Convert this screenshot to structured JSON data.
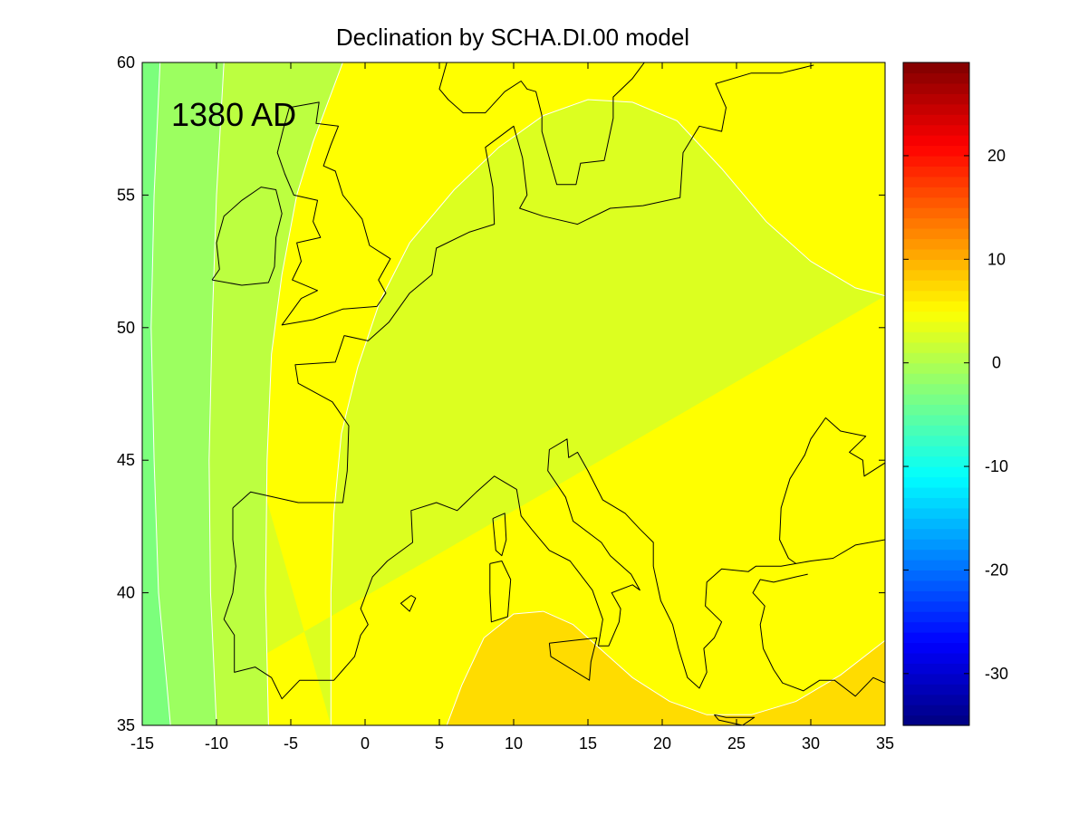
{
  "chart_data": {
    "type": "contour_map",
    "title": "Declination by SCHA.DI.00 model",
    "annotation": "1380 AD",
    "xlabel": "",
    "ylabel": "",
    "xlim": [
      -15,
      35
    ],
    "ylim": [
      35,
      60
    ],
    "x_ticks": [
      -15,
      -10,
      -5,
      0,
      5,
      10,
      15,
      20,
      25,
      30,
      35
    ],
    "y_ticks": [
      35,
      40,
      45,
      50,
      55,
      60
    ],
    "colorbar": {
      "range": [
        -35,
        29
      ],
      "ticks": [
        20,
        10,
        0,
        -10,
        -20,
        -30
      ],
      "colormap": "jet"
    },
    "contour_levels": [
      -6,
      -4,
      -2,
      0,
      2,
      4
    ],
    "contour_fill_colors": {
      "below_-6": "#7cff7c",
      "-6_to_-4": "#9cff60",
      "-4_to_-2": "#bcff40",
      "-2_to_0": "#dcff20",
      "0_to_2": "#ffff00",
      "above_2": "#ffdc00"
    },
    "isolines": [
      {
        "level": -6,
        "points": [
          [
            -13.8,
            60
          ],
          [
            -14.2,
            55
          ],
          [
            -14.4,
            50
          ],
          [
            -14.2,
            45
          ],
          [
            -13.9,
            40
          ],
          [
            -13.1,
            35
          ]
        ]
      },
      {
        "level": -4,
        "points": [
          [
            -9.5,
            60
          ],
          [
            -10.0,
            55
          ],
          [
            -10.3,
            50
          ],
          [
            -10.5,
            45
          ],
          [
            -10.4,
            40
          ],
          [
            -10.0,
            35
          ]
        ]
      },
      {
        "level": -2,
        "points": [
          [
            -1.5,
            60
          ],
          [
            -3.5,
            57
          ],
          [
            -4.6,
            55
          ],
          [
            -5.6,
            52
          ],
          [
            -6.3,
            49
          ],
          [
            -6.6,
            45
          ],
          [
            -6.7,
            40
          ],
          [
            -6.5,
            35
          ]
        ]
      },
      {
        "level": 0,
        "points": [
          [
            35,
            51.2
          ],
          [
            33,
            51.5
          ],
          [
            30,
            52.5
          ],
          [
            27,
            54.0
          ],
          [
            24,
            56.0
          ],
          [
            21,
            57.8
          ],
          [
            18,
            58.5
          ],
          [
            15,
            58.6
          ],
          [
            12,
            58.0
          ],
          [
            9,
            56.8
          ],
          [
            6,
            55.2
          ],
          [
            3,
            53.2
          ],
          [
            1,
            51.0
          ],
          [
            -0.5,
            48.5
          ],
          [
            -1.6,
            46.0
          ],
          [
            -2.1,
            43.0
          ],
          [
            -2.3,
            40.0
          ],
          [
            -2.3,
            35
          ]
        ]
      },
      {
        "level": 2,
        "points": [
          [
            5.5,
            35
          ],
          [
            6.5,
            36.5
          ],
          [
            8.0,
            38.3
          ],
          [
            10.0,
            39.2
          ],
          [
            12.0,
            39.3
          ],
          [
            14.0,
            38.8
          ],
          [
            16.0,
            37.8
          ],
          [
            18.0,
            36.8
          ],
          [
            20.5,
            35.9
          ],
          [
            23.0,
            35.4
          ],
          [
            26.0,
            35.4
          ],
          [
            29.0,
            35.9
          ],
          [
            32.0,
            36.9
          ],
          [
            35,
            38.2
          ]
        ]
      }
    ],
    "coastlines": [
      [
        [
          -10.3,
          51.8
        ],
        [
          -9.8,
          52.2
        ],
        [
          -10.0,
          53.2
        ],
        [
          -9.5,
          54.2
        ],
        [
          -8.3,
          54.8
        ],
        [
          -7.0,
          55.3
        ],
        [
          -6.0,
          55.2
        ],
        [
          -5.6,
          54.3
        ],
        [
          -6.0,
          53.4
        ],
        [
          -6.1,
          52.3
        ],
        [
          -6.5,
          51.7
        ],
        [
          -8.3,
          51.6
        ],
        [
          -10.3,
          51.8
        ]
      ],
      [
        [
          -5.1,
          58.3
        ],
        [
          -5.5,
          57.5
        ],
        [
          -5.9,
          56.6
        ],
        [
          -5.4,
          55.8
        ],
        [
          -4.8,
          55.0
        ],
        [
          -3.2,
          54.8
        ],
        [
          -3.5,
          54.0
        ],
        [
          -3.0,
          53.4
        ],
        [
          -4.6,
          53.2
        ],
        [
          -4.3,
          52.5
        ],
        [
          -4.9,
          51.8
        ],
        [
          -3.2,
          51.4
        ],
        [
          -4.3,
          51.1
        ],
        [
          -5.6,
          50.1
        ],
        [
          -3.5,
          50.3
        ],
        [
          -1.5,
          50.7
        ],
        [
          0.8,
          50.8
        ],
        [
          1.4,
          51.3
        ],
        [
          0.9,
          51.8
        ],
        [
          1.7,
          52.6
        ],
        [
          0.3,
          53.1
        ],
        [
          -0.2,
          54.1
        ],
        [
          -1.5,
          55.0
        ],
        [
          -2.0,
          55.9
        ],
        [
          -2.8,
          56.1
        ],
        [
          -2.3,
          56.9
        ],
        [
          -1.8,
          57.6
        ],
        [
          -3.3,
          57.7
        ],
        [
          -3.1,
          58.5
        ],
        [
          -5.1,
          58.3
        ]
      ],
      [
        [
          -8.9,
          43.2
        ],
        [
          -7.7,
          43.8
        ],
        [
          -4.5,
          43.4
        ],
        [
          -1.5,
          43.4
        ],
        [
          -1.2,
          44.6
        ],
        [
          -1.1,
          46.3
        ],
        [
          -2.2,
          47.2
        ],
        [
          -4.5,
          47.9
        ],
        [
          -4.7,
          48.6
        ],
        [
          -2.0,
          48.7
        ],
        [
          -1.4,
          49.7
        ],
        [
          0.2,
          49.5
        ],
        [
          1.6,
          50.2
        ],
        [
          3.0,
          51.3
        ],
        [
          4.5,
          52.0
        ],
        [
          4.8,
          53.0
        ],
        [
          7.0,
          53.6
        ],
        [
          8.7,
          53.9
        ],
        [
          8.6,
          55.3
        ],
        [
          8.1,
          56.8
        ],
        [
          10.0,
          57.6
        ],
        [
          10.6,
          56.4
        ],
        [
          10.9,
          55.0
        ],
        [
          10.4,
          54.5
        ],
        [
          12.0,
          54.2
        ],
        [
          14.3,
          53.9
        ],
        [
          16.5,
          54.5
        ],
        [
          18.7,
          54.6
        ],
        [
          21.2,
          54.9
        ],
        [
          21.4,
          56.6
        ],
        [
          22.5,
          57.6
        ],
        [
          24.0,
          57.4
        ],
        [
          24.3,
          58.3
        ],
        [
          23.6,
          59.2
        ],
        [
          26.0,
          59.6
        ],
        [
          28.0,
          59.6
        ],
        [
          30.2,
          59.9
        ]
      ],
      [
        [
          12.6,
          56.0
        ],
        [
          12.9,
          55.4
        ],
        [
          14.2,
          55.4
        ],
        [
          14.5,
          56.2
        ],
        [
          16.1,
          56.3
        ],
        [
          16.7,
          57.9
        ],
        [
          16.7,
          58.7
        ],
        [
          18.0,
          59.4
        ],
        [
          18.8,
          60.0
        ]
      ],
      [
        [
          5.5,
          60.0
        ],
        [
          5.0,
          59.0
        ],
        [
          5.6,
          58.6
        ],
        [
          6.6,
          58.1
        ],
        [
          8.1,
          58.1
        ],
        [
          9.4,
          58.9
        ],
        [
          10.5,
          59.3
        ],
        [
          10.9,
          59.0
        ],
        [
          11.5,
          58.9
        ],
        [
          11.9,
          58.0
        ],
        [
          11.9,
          57.4
        ],
        [
          12.6,
          56.0
        ]
      ],
      [
        [
          -8.9,
          43.2
        ],
        [
          -8.9,
          42.0
        ],
        [
          -8.7,
          41.0
        ],
        [
          -8.9,
          40.0
        ],
        [
          -9.5,
          39.0
        ],
        [
          -8.8,
          38.4
        ],
        [
          -8.8,
          37.0
        ],
        [
          -7.4,
          37.2
        ],
        [
          -6.3,
          36.8
        ],
        [
          -5.6,
          36.0
        ],
        [
          -4.4,
          36.7
        ],
        [
          -2.1,
          36.7
        ],
        [
          -0.7,
          37.6
        ],
        [
          -0.3,
          38.4
        ],
        [
          0.2,
          38.8
        ],
        [
          -0.3,
          39.4
        ],
        [
          0.5,
          40.6
        ],
        [
          1.5,
          41.2
        ],
        [
          3.2,
          41.9
        ],
        [
          3.1,
          43.1
        ],
        [
          4.8,
          43.4
        ],
        [
          6.2,
          43.1
        ],
        [
          7.5,
          43.8
        ],
        [
          8.7,
          44.4
        ],
        [
          10.2,
          43.9
        ],
        [
          10.5,
          42.9
        ],
        [
          11.2,
          42.4
        ],
        [
          12.4,
          41.6
        ],
        [
          13.8,
          41.2
        ],
        [
          15.3,
          40.1
        ],
        [
          16.0,
          39.0
        ],
        [
          15.7,
          38.0
        ],
        [
          16.4,
          38.0
        ],
        [
          17.1,
          38.9
        ],
        [
          17.2,
          39.4
        ],
        [
          16.6,
          40.0
        ],
        [
          18.0,
          40.3
        ],
        [
          18.5,
          40.1
        ],
        [
          17.9,
          40.7
        ],
        [
          16.5,
          41.4
        ],
        [
          15.9,
          41.9
        ],
        [
          14.0,
          42.7
        ],
        [
          13.5,
          43.6
        ],
        [
          12.3,
          44.6
        ],
        [
          12.4,
          45.4
        ],
        [
          13.6,
          45.8
        ],
        [
          13.7,
          45.1
        ],
        [
          14.3,
          45.3
        ],
        [
          15.0,
          44.6
        ],
        [
          16.0,
          43.5
        ],
        [
          17.5,
          43.0
        ],
        [
          18.5,
          42.4
        ],
        [
          19.4,
          41.9
        ],
        [
          19.4,
          41.0
        ],
        [
          19.9,
          39.7
        ],
        [
          20.7,
          38.8
        ],
        [
          21.1,
          37.9
        ],
        [
          21.7,
          36.8
        ],
        [
          22.5,
          36.4
        ],
        [
          23.0,
          37.0
        ],
        [
          22.8,
          37.9
        ],
        [
          23.5,
          38.3
        ],
        [
          24.0,
          38.9
        ],
        [
          22.9,
          39.5
        ],
        [
          23.0,
          40.4
        ],
        [
          24.0,
          40.9
        ],
        [
          25.8,
          40.8
        ],
        [
          26.3,
          41.0
        ],
        [
          28.0,
          41.0
        ],
        [
          29.0,
          41.1
        ],
        [
          30.0,
          41.2
        ],
        [
          31.5,
          41.3
        ],
        [
          33.0,
          41.8
        ],
        [
          35.0,
          42.0
        ]
      ],
      [
        [
          35.0,
          36.6
        ],
        [
          34.2,
          36.8
        ],
        [
          33.0,
          36.1
        ],
        [
          31.6,
          36.7
        ],
        [
          30.6,
          36.7
        ],
        [
          29.5,
          36.3
        ],
        [
          28.1,
          36.6
        ],
        [
          27.5,
          37.1
        ],
        [
          26.8,
          37.9
        ],
        [
          26.6,
          38.8
        ],
        [
          26.9,
          39.5
        ],
        [
          26.1,
          40.0
        ],
        [
          26.6,
          40.5
        ],
        [
          27.5,
          40.4
        ],
        [
          29.0,
          40.6
        ],
        [
          29.8,
          40.7
        ]
      ],
      [
        [
          35.0,
          44.9
        ],
        [
          33.6,
          44.4
        ],
        [
          33.5,
          45.0
        ],
        [
          32.6,
          45.3
        ],
        [
          33.7,
          45.9
        ],
        [
          32.0,
          46.1
        ],
        [
          31.0,
          46.6
        ],
        [
          30.0,
          45.8
        ],
        [
          29.6,
          45.2
        ],
        [
          28.6,
          44.3
        ],
        [
          28.0,
          43.2
        ],
        [
          27.9,
          42.0
        ],
        [
          28.5,
          41.3
        ],
        [
          29.0,
          41.1
        ]
      ],
      [
        [
          3.1,
          39.9
        ],
        [
          2.4,
          39.6
        ],
        [
          3.0,
          39.3
        ],
        [
          3.4,
          39.8
        ],
        [
          3.1,
          39.9
        ]
      ],
      [
        [
          8.4,
          41.1
        ],
        [
          9.2,
          41.2
        ],
        [
          9.8,
          40.5
        ],
        [
          9.6,
          39.1
        ],
        [
          8.5,
          38.9
        ],
        [
          8.4,
          40.0
        ],
        [
          8.4,
          41.1
        ]
      ],
      [
        [
          8.6,
          42.8
        ],
        [
          9.4,
          43.0
        ],
        [
          9.5,
          42.0
        ],
        [
          9.2,
          41.4
        ],
        [
          8.8,
          41.6
        ],
        [
          8.6,
          42.8
        ]
      ],
      [
        [
          12.4,
          38.1
        ],
        [
          15.6,
          38.3
        ],
        [
          15.2,
          37.4
        ],
        [
          15.1,
          36.7
        ],
        [
          12.5,
          37.6
        ],
        [
          12.4,
          38.1
        ]
      ],
      [
        [
          23.5,
          35.4
        ],
        [
          24.3,
          35.3
        ],
        [
          26.2,
          35.3
        ],
        [
          25.4,
          35.0
        ],
        [
          23.8,
          35.2
        ],
        [
          23.5,
          35.4
        ]
      ]
    ]
  }
}
